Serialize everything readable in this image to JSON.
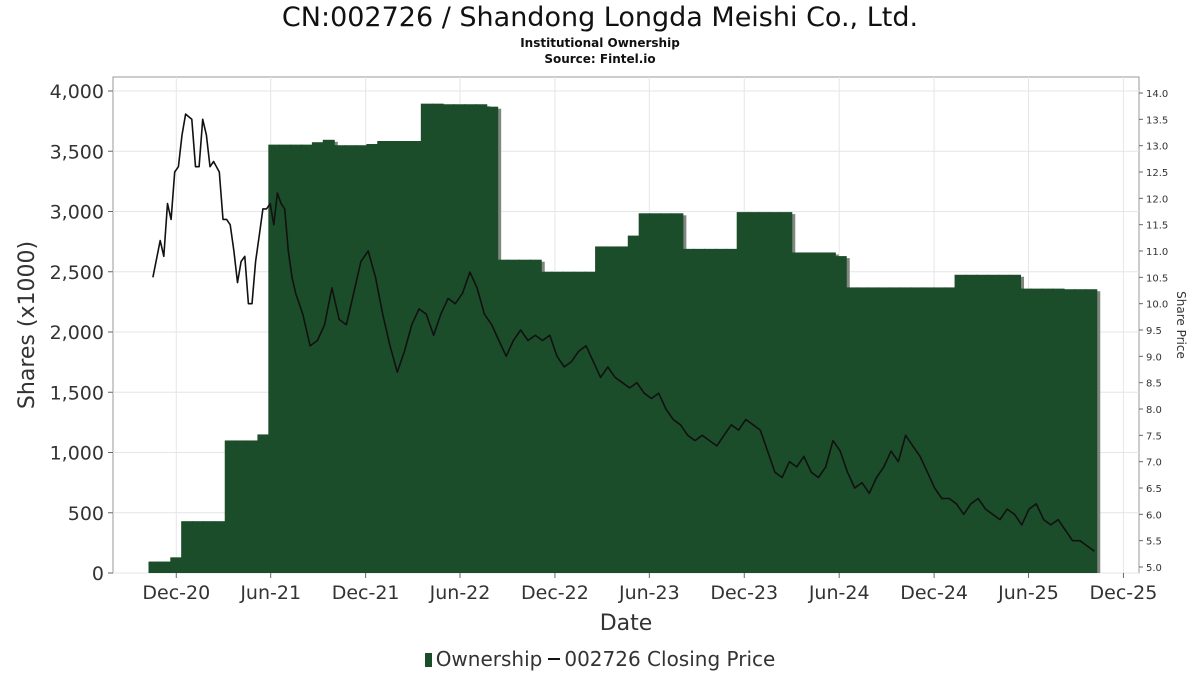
{
  "header": {
    "title": "CN:002726 / Shandong Longda Meishi Co., Ltd.",
    "subtitle": "Institutional Ownership",
    "source": "Source: Fintel.io"
  },
  "legend": {
    "ownership_label": "Ownership",
    "price_label": "002726 Closing Price"
  },
  "colors": {
    "bar": "#1b4d2a",
    "bar_shadow": "#7f877f",
    "price_line": "#111111",
    "grid": "#e6e6e6"
  },
  "chart_data": {
    "type": "bar",
    "title": "CN:002726 / Shandong Longda Meishi Co., Ltd.",
    "xlabel": "Date",
    "ylabel": "Shares (x1000)",
    "y2label": "Share Price",
    "ylim": [
      0,
      4000
    ],
    "y2lim": [
      5.0,
      14.0
    ],
    "xlim": [
      "2020-08-01",
      "2025-12-31"
    ],
    "x_ticks": [
      {
        "date": "2020-12-01",
        "label": "Dec-20"
      },
      {
        "date": "2021-06-01",
        "label": "Jun-21"
      },
      {
        "date": "2021-12-01",
        "label": "Dec-21"
      },
      {
        "date": "2022-06-01",
        "label": "Jun-22"
      },
      {
        "date": "2022-12-01",
        "label": "Dec-22"
      },
      {
        "date": "2023-06-01",
        "label": "Jun-23"
      },
      {
        "date": "2023-12-01",
        "label": "Dec-23"
      },
      {
        "date": "2024-06-01",
        "label": "Jun-24"
      },
      {
        "date": "2024-12-01",
        "label": "Dec-24"
      },
      {
        "date": "2025-06-01",
        "label": "Jun-25"
      },
      {
        "date": "2025-12-01",
        "label": "Dec-25"
      }
    ],
    "y_ticks": [
      {
        "value": 0,
        "label": "0"
      },
      {
        "value": 500,
        "label": "500"
      },
      {
        "value": 1000,
        "label": "1,000"
      },
      {
        "value": 1500,
        "label": "1,500"
      },
      {
        "value": 2000,
        "label": "2,000"
      },
      {
        "value": 2500,
        "label": "2,500"
      },
      {
        "value": 3000,
        "label": "3,000"
      },
      {
        "value": 3500,
        "label": "3,500"
      },
      {
        "value": 4000,
        "label": "4,000"
      }
    ],
    "y2_ticks": [
      {
        "value": 5.0,
        "label": "5.0"
      },
      {
        "value": 5.5,
        "label": "5.5"
      },
      {
        "value": 6.0,
        "label": "6.0"
      },
      {
        "value": 6.5,
        "label": "6.5"
      },
      {
        "value": 7.0,
        "label": "7.0"
      },
      {
        "value": 7.5,
        "label": "7.5"
      },
      {
        "value": 8.0,
        "label": "8.0"
      },
      {
        "value": 8.5,
        "label": "8.5"
      },
      {
        "value": 9.0,
        "label": "9.0"
      },
      {
        "value": 9.5,
        "label": "9.5"
      },
      {
        "value": 10.0,
        "label": "10.0"
      },
      {
        "value": 10.5,
        "label": "10.5"
      },
      {
        "value": 11.0,
        "label": "11.0"
      },
      {
        "value": 11.5,
        "label": "11.5"
      },
      {
        "value": 12.0,
        "label": "12.0"
      },
      {
        "value": 12.5,
        "label": "12.5"
      },
      {
        "value": 13.0,
        "label": "13.0"
      },
      {
        "value": 13.5,
        "label": "13.5"
      },
      {
        "value": 14.0,
        "label": "14.0"
      }
    ],
    "grid": true,
    "legend_position": "bottom",
    "series": [
      {
        "name": "Ownership",
        "type": "bar",
        "dates": [
          "2020-10-20",
          "2020-11-10",
          "2020-12-01",
          "2020-12-22",
          "2021-01-12",
          "2021-02-02",
          "2021-02-23",
          "2021-03-16",
          "2021-04-06",
          "2021-04-27",
          "2021-05-18",
          "2021-06-08",
          "2021-06-29",
          "2021-07-20",
          "2021-08-10",
          "2021-08-31",
          "2021-09-21",
          "2021-10-12",
          "2021-11-02",
          "2021-11-23",
          "2021-12-14",
          "2022-01-04",
          "2022-01-25",
          "2022-02-15",
          "2022-03-08",
          "2022-03-29",
          "2022-04-19",
          "2022-05-10",
          "2022-05-31",
          "2022-06-21",
          "2022-07-12",
          "2022-08-02",
          "2022-08-23",
          "2022-09-13",
          "2022-10-04",
          "2022-10-25",
          "2022-11-15",
          "2022-12-06",
          "2022-12-27",
          "2023-01-17",
          "2023-02-07",
          "2023-02-28",
          "2023-03-21",
          "2023-04-11",
          "2023-05-02",
          "2023-05-23",
          "2023-06-13",
          "2023-07-04",
          "2023-07-25",
          "2023-08-15",
          "2023-09-05",
          "2023-09-26",
          "2023-10-17",
          "2023-11-07",
          "2023-11-28",
          "2023-12-19",
          "2024-01-09",
          "2024-01-30",
          "2024-02-20",
          "2024-03-12",
          "2024-04-02",
          "2024-04-23",
          "2024-05-14",
          "2024-06-04",
          "2024-06-25",
          "2024-07-16",
          "2024-08-06",
          "2024-08-27",
          "2024-09-17",
          "2024-10-08",
          "2024-10-29",
          "2024-11-19",
          "2024-12-10",
          "2024-12-31",
          "2025-01-21",
          "2025-02-11",
          "2025-03-04",
          "2025-03-25",
          "2025-04-15",
          "2025-05-06",
          "2025-05-27",
          "2025-06-17",
          "2025-07-08",
          "2025-07-29",
          "2025-08-19",
          "2025-09-09",
          "2025-09-30"
        ],
        "values": [
          95,
          95,
          130,
          430,
          430,
          430,
          430,
          1100,
          1100,
          1100,
          1150,
          3555,
          3555,
          3555,
          3555,
          3575,
          3595,
          3550,
          3550,
          3550,
          3560,
          3585,
          3585,
          3585,
          3585,
          3895,
          3895,
          3890,
          3890,
          3890,
          3890,
          3870,
          2600,
          2600,
          2600,
          2600,
          2500,
          2500,
          2500,
          2500,
          2500,
          2710,
          2710,
          2710,
          2800,
          2985,
          2985,
          2985,
          2985,
          2690,
          2690,
          2690,
          2690,
          2690,
          2995,
          2995,
          2995,
          2995,
          2995,
          2660,
          2660,
          2660,
          2660,
          2630,
          2370,
          2370,
          2370,
          2370,
          2370,
          2370,
          2370,
          2370,
          2370,
          2370,
          2475,
          2475,
          2475,
          2475,
          2475,
          2475,
          2360,
          2360,
          2360,
          2360,
          2355,
          2355,
          2355
        ]
      },
      {
        "name": "002726 Closing Price",
        "type": "line",
        "axis": "y2",
        "points": [
          [
            "2020-10-17",
            10.5
          ],
          [
            "2020-10-31",
            11.2
          ],
          [
            "2020-11-07",
            10.9
          ],
          [
            "2020-11-14",
            11.9
          ],
          [
            "2020-11-21",
            11.6
          ],
          [
            "2020-11-28",
            12.5
          ],
          [
            "2020-12-05",
            12.6
          ],
          [
            "2020-12-12",
            13.2
          ],
          [
            "2020-12-19",
            13.6
          ],
          [
            "2020-12-31",
            13.5
          ],
          [
            "2021-01-07",
            12.6
          ],
          [
            "2021-01-14",
            12.6
          ],
          [
            "2021-01-21",
            13.5
          ],
          [
            "2021-01-28",
            13.2
          ],
          [
            "2021-02-04",
            12.6
          ],
          [
            "2021-02-11",
            12.7
          ],
          [
            "2021-02-22",
            12.5
          ],
          [
            "2021-03-01",
            11.6
          ],
          [
            "2021-03-08",
            11.6
          ],
          [
            "2021-03-15",
            11.5
          ],
          [
            "2021-03-22",
            11.0
          ],
          [
            "2021-03-29",
            10.4
          ],
          [
            "2021-04-05",
            10.8
          ],
          [
            "2021-04-12",
            10.9
          ],
          [
            "2021-04-19",
            10.0
          ],
          [
            "2021-04-26",
            10.0
          ],
          [
            "2021-05-03",
            10.8
          ],
          [
            "2021-05-10",
            11.3
          ],
          [
            "2021-05-17",
            11.8
          ],
          [
            "2021-05-24",
            11.8
          ],
          [
            "2021-05-31",
            11.9
          ],
          [
            "2021-06-07",
            11.5
          ],
          [
            "2021-06-14",
            12.1
          ],
          [
            "2021-06-21",
            11.9
          ],
          [
            "2021-06-28",
            11.8
          ],
          [
            "2021-07-05",
            11.0
          ],
          [
            "2021-07-12",
            10.5
          ],
          [
            "2021-07-19",
            10.2
          ],
          [
            "2021-08-02",
            9.8
          ],
          [
            "2021-08-16",
            9.2
          ],
          [
            "2021-08-30",
            9.3
          ],
          [
            "2021-09-13",
            9.6
          ],
          [
            "2021-09-27",
            10.3
          ],
          [
            "2021-10-11",
            9.7
          ],
          [
            "2021-10-25",
            9.6
          ],
          [
            "2021-11-08",
            10.2
          ],
          [
            "2021-11-22",
            10.8
          ],
          [
            "2021-12-06",
            11.0
          ],
          [
            "2021-12-20",
            10.5
          ],
          [
            "2022-01-03",
            9.8
          ],
          [
            "2022-01-17",
            9.2
          ],
          [
            "2022-01-31",
            8.7
          ],
          [
            "2022-02-14",
            9.1
          ],
          [
            "2022-02-28",
            9.6
          ],
          [
            "2022-03-14",
            9.9
          ],
          [
            "2022-03-28",
            9.8
          ],
          [
            "2022-04-11",
            9.4
          ],
          [
            "2022-04-25",
            9.8
          ],
          [
            "2022-05-09",
            10.1
          ],
          [
            "2022-05-23",
            10.0
          ],
          [
            "2022-06-06",
            10.2
          ],
          [
            "2022-06-20",
            10.6
          ],
          [
            "2022-07-04",
            10.3
          ],
          [
            "2022-07-18",
            9.8
          ],
          [
            "2022-08-01",
            9.6
          ],
          [
            "2022-08-15",
            9.3
          ],
          [
            "2022-08-29",
            9.0
          ],
          [
            "2022-09-12",
            9.3
          ],
          [
            "2022-09-26",
            9.5
          ],
          [
            "2022-10-10",
            9.3
          ],
          [
            "2022-10-24",
            9.4
          ],
          [
            "2022-11-07",
            9.3
          ],
          [
            "2022-11-21",
            9.4
          ],
          [
            "2022-12-05",
            9.0
          ],
          [
            "2022-12-19",
            8.8
          ],
          [
            "2023-01-02",
            8.9
          ],
          [
            "2023-01-16",
            9.1
          ],
          [
            "2023-01-30",
            9.2
          ],
          [
            "2023-02-13",
            8.9
          ],
          [
            "2023-02-27",
            8.6
          ],
          [
            "2023-03-13",
            8.8
          ],
          [
            "2023-03-27",
            8.6
          ],
          [
            "2023-04-10",
            8.5
          ],
          [
            "2023-04-24",
            8.4
          ],
          [
            "2023-05-08",
            8.5
          ],
          [
            "2023-05-22",
            8.3
          ],
          [
            "2023-06-05",
            8.2
          ],
          [
            "2023-06-19",
            8.3
          ],
          [
            "2023-07-03",
            8.0
          ],
          [
            "2023-07-17",
            7.8
          ],
          [
            "2023-07-31",
            7.7
          ],
          [
            "2023-08-14",
            7.5
          ],
          [
            "2023-08-28",
            7.4
          ],
          [
            "2023-09-11",
            7.5
          ],
          [
            "2023-09-25",
            7.4
          ],
          [
            "2023-10-09",
            7.3
          ],
          [
            "2023-10-23",
            7.5
          ],
          [
            "2023-11-06",
            7.7
          ],
          [
            "2023-11-20",
            7.6
          ],
          [
            "2023-12-04",
            7.8
          ],
          [
            "2023-12-18",
            7.7
          ],
          [
            "2024-01-01",
            7.6
          ],
          [
            "2024-01-15",
            7.2
          ],
          [
            "2024-01-29",
            6.8
          ],
          [
            "2024-02-12",
            6.7
          ],
          [
            "2024-02-26",
            7.0
          ],
          [
            "2024-03-11",
            6.9
          ],
          [
            "2024-03-25",
            7.1
          ],
          [
            "2024-04-08",
            6.8
          ],
          [
            "2024-04-22",
            6.7
          ],
          [
            "2024-05-06",
            6.9
          ],
          [
            "2024-05-20",
            7.4
          ],
          [
            "2024-06-03",
            7.2
          ],
          [
            "2024-06-17",
            6.8
          ],
          [
            "2024-07-01",
            6.5
          ],
          [
            "2024-07-15",
            6.6
          ],
          [
            "2024-07-29",
            6.4
          ],
          [
            "2024-08-12",
            6.7
          ],
          [
            "2024-08-26",
            6.9
          ],
          [
            "2024-09-09",
            7.2
          ],
          [
            "2024-09-23",
            7.0
          ],
          [
            "2024-10-07",
            7.5
          ],
          [
            "2024-10-21",
            7.3
          ],
          [
            "2024-11-04",
            7.1
          ],
          [
            "2024-11-18",
            6.8
          ],
          [
            "2024-12-02",
            6.5
          ],
          [
            "2024-12-16",
            6.3
          ],
          [
            "2024-12-30",
            6.3
          ],
          [
            "2025-01-13",
            6.2
          ],
          [
            "2025-01-27",
            6.0
          ],
          [
            "2025-02-10",
            6.2
          ],
          [
            "2025-02-24",
            6.3
          ],
          [
            "2025-03-10",
            6.1
          ],
          [
            "2025-03-24",
            6.0
          ],
          [
            "2025-04-07",
            5.9
          ],
          [
            "2025-04-21",
            6.1
          ],
          [
            "2025-05-05",
            6.0
          ],
          [
            "2025-05-19",
            5.8
          ],
          [
            "2025-06-02",
            6.1
          ],
          [
            "2025-06-16",
            6.2
          ],
          [
            "2025-06-30",
            5.9
          ],
          [
            "2025-07-14",
            5.8
          ],
          [
            "2025-07-28",
            5.9
          ],
          [
            "2025-08-11",
            5.7
          ],
          [
            "2025-08-25",
            5.5
          ],
          [
            "2025-09-08",
            5.5
          ],
          [
            "2025-09-22",
            5.4
          ],
          [
            "2025-10-06",
            5.3
          ]
        ]
      }
    ]
  }
}
